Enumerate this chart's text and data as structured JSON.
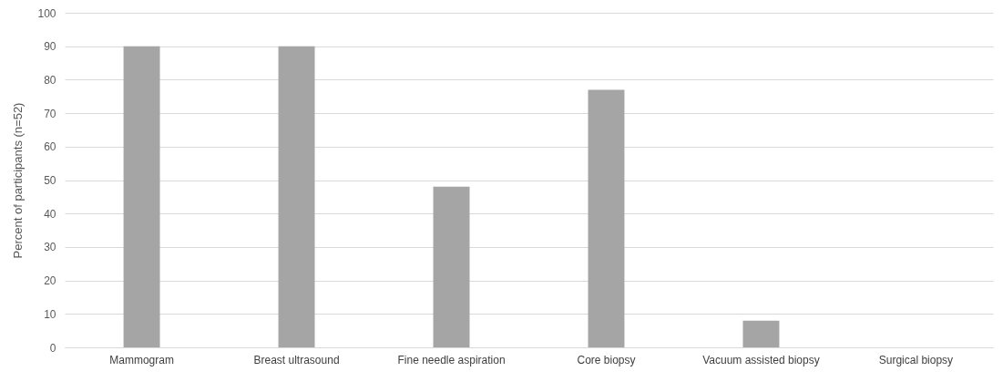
{
  "chart_data": {
    "type": "bar",
    "ylabel": "Percent of participants (n=52)",
    "categories": [
      "Mammogram",
      "Breast ultrasound",
      "Fine needle aspiration",
      "Core biopsy",
      "Vacuum assisted biopsy",
      "Surgical biopsy"
    ],
    "values": [
      90,
      90,
      48,
      77,
      8,
      0
    ],
    "color": "#a5a5a5",
    "ylim": [
      0,
      100
    ],
    "yticks": [
      0,
      10,
      20,
      30,
      40,
      50,
      60,
      70,
      80,
      90,
      100
    ],
    "grid": "y"
  }
}
